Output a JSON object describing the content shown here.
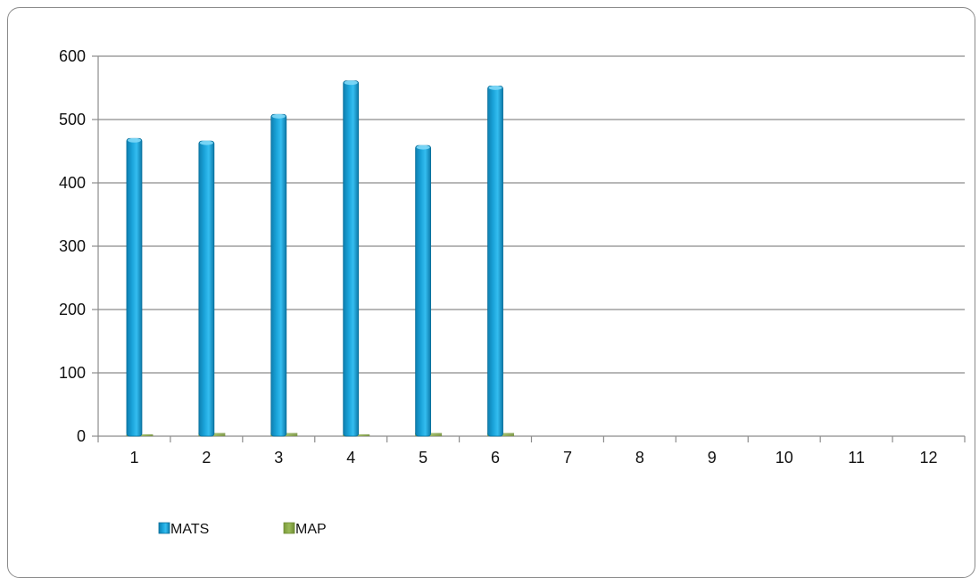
{
  "chart_data": {
    "type": "bar",
    "categories": [
      "1",
      "2",
      "3",
      "4",
      "5",
      "6",
      "7",
      "8",
      "9",
      "10",
      "11",
      "12"
    ],
    "series": [
      {
        "name": "MATS",
        "values": [
          470,
          466,
          508,
          561,
          459,
          553,
          null,
          null,
          null,
          null,
          null,
          null
        ],
        "color": "#1aa3d9"
      },
      {
        "name": "MAP",
        "values": [
          3,
          5,
          5,
          3,
          5,
          5,
          null,
          null,
          null,
          null,
          null,
          null
        ],
        "color": "#9bbb59"
      }
    ],
    "ylim": [
      0,
      600
    ],
    "yticks": [
      0,
      100,
      200,
      300,
      400,
      500,
      600
    ],
    "grid": true,
    "legend_position": "bottom-left"
  }
}
